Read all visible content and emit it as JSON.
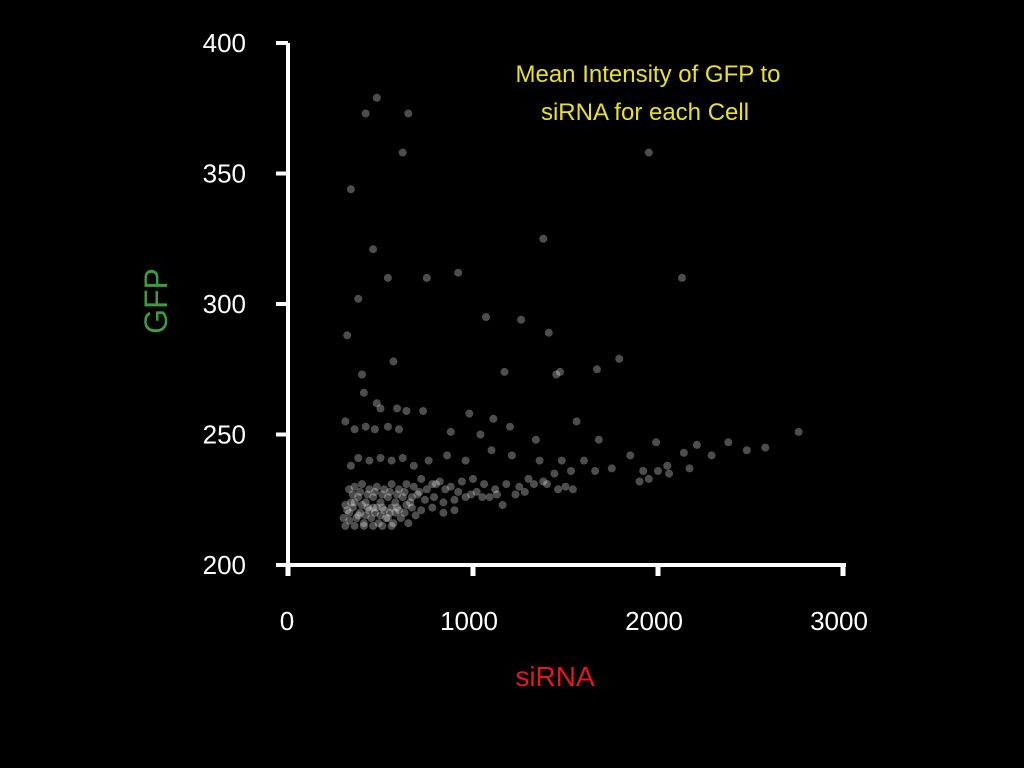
{
  "chart_data": {
    "type": "scatter",
    "title": "Mean Intensity of GFP to siRNA for each Cell",
    "title_lines": [
      "Mean Intensity of GFP to",
      "siRNA for each Cell"
    ],
    "xlabel": "siRNA",
    "ylabel": "GFP",
    "xlim": [
      0,
      3000
    ],
    "ylim": [
      200,
      400
    ],
    "x_ticks": [
      0,
      1000,
      2000,
      3000
    ],
    "x_tick_labels": [
      "0",
      "1000",
      "2000",
      "3000"
    ],
    "y_ticks": [
      200,
      250,
      300,
      350,
      400
    ],
    "y_tick_labels": [
      "200",
      "250",
      "300",
      "350",
      "400"
    ],
    "grid": false,
    "legend": "none",
    "colors": {
      "background": "#000000",
      "axes": "#ffffff",
      "tick_labels": "#ffffff",
      "title": "#e8e02a",
      "xlabel": "#e0191e",
      "ylabel": "#3f9a40",
      "points": "#ffffff"
    },
    "points": [
      [
        480,
        379
      ],
      [
        420,
        373
      ],
      [
        650,
        373
      ],
      [
        620,
        358
      ],
      [
        1950,
        358
      ],
      [
        340,
        344
      ],
      [
        1380,
        325
      ],
      [
        460,
        321
      ],
      [
        540,
        310
      ],
      [
        750,
        310
      ],
      [
        920,
        312
      ],
      [
        2130,
        310
      ],
      [
        380,
        302
      ],
      [
        1070,
        295
      ],
      [
        1260,
        294
      ],
      [
        1410,
        289
      ],
      [
        320,
        288
      ],
      [
        570,
        278
      ],
      [
        1790,
        279
      ],
      [
        1670,
        275
      ],
      [
        1170,
        274
      ],
      [
        1450,
        273
      ],
      [
        1470,
        274
      ],
      [
        400,
        273
      ],
      [
        410,
        266
      ],
      [
        480,
        262
      ],
      [
        500,
        260
      ],
      [
        590,
        260
      ],
      [
        640,
        259
      ],
      [
        730,
        259
      ],
      [
        980,
        258
      ],
      [
        1110,
        256
      ],
      [
        1560,
        255
      ],
      [
        310,
        255
      ],
      [
        360,
        252
      ],
      [
        420,
        253
      ],
      [
        470,
        252
      ],
      [
        540,
        253
      ],
      [
        600,
        252
      ],
      [
        880,
        251
      ],
      [
        1040,
        250
      ],
      [
        1200,
        253
      ],
      [
        1340,
        248
      ],
      [
        1680,
        248
      ],
      [
        1990,
        247
      ],
      [
        2210,
        246
      ],
      [
        2380,
        247
      ],
      [
        2580,
        245
      ],
      [
        2760,
        251
      ],
      [
        2480,
        244
      ],
      [
        2140,
        243
      ],
      [
        2290,
        242
      ],
      [
        1850,
        242
      ],
      [
        1600,
        240
      ],
      [
        1480,
        240
      ],
      [
        1360,
        240
      ],
      [
        1210,
        242
      ],
      [
        1100,
        244
      ],
      [
        960,
        240
      ],
      [
        860,
        242
      ],
      [
        760,
        240
      ],
      [
        680,
        238
      ],
      [
        620,
        241
      ],
      [
        560,
        240
      ],
      [
        500,
        241
      ],
      [
        440,
        240
      ],
      [
        380,
        241
      ],
      [
        340,
        238
      ],
      [
        1750,
        237
      ],
      [
        1920,
        236
      ],
      [
        2050,
        238
      ],
      [
        2170,
        237
      ],
      [
        2060,
        235
      ],
      [
        1900,
        232
      ],
      [
        1950,
        233
      ],
      [
        2000,
        236
      ],
      [
        1660,
        236
      ],
      [
        1530,
        236
      ],
      [
        1440,
        235
      ],
      [
        1380,
        232
      ],
      [
        1300,
        233
      ],
      [
        1250,
        230
      ],
      [
        1180,
        231
      ],
      [
        1120,
        229
      ],
      [
        1060,
        231
      ],
      [
        1000,
        233
      ],
      [
        940,
        232
      ],
      [
        880,
        230
      ],
      [
        820,
        232
      ],
      [
        780,
        231
      ],
      [
        720,
        233
      ],
      [
        680,
        230
      ],
      [
        640,
        231
      ],
      [
        600,
        229
      ],
      [
        560,
        231
      ],
      [
        520,
        229
      ],
      [
        480,
        230
      ],
      [
        440,
        229
      ],
      [
        400,
        231
      ],
      [
        360,
        230
      ],
      [
        330,
        229
      ],
      [
        1540,
        229
      ],
      [
        1460,
        229
      ],
      [
        1330,
        231
      ],
      [
        1230,
        227
      ],
      [
        1160,
        223
      ],
      [
        1090,
        226
      ],
      [
        1020,
        228
      ],
      [
        960,
        226
      ],
      [
        900,
        225
      ],
      [
        840,
        224
      ],
      [
        790,
        226
      ],
      [
        740,
        225
      ],
      [
        700,
        227
      ],
      [
        660,
        224
      ],
      [
        620,
        226
      ],
      [
        580,
        224
      ],
      [
        540,
        226
      ],
      [
        500,
        224
      ],
      [
        460,
        226
      ],
      [
        420,
        224
      ],
      [
        380,
        226
      ],
      [
        340,
        224
      ],
      [
        310,
        223
      ],
      [
        320,
        221
      ],
      [
        350,
        222
      ],
      [
        390,
        220
      ],
      [
        430,
        222
      ],
      [
        470,
        220
      ],
      [
        510,
        222
      ],
      [
        550,
        220
      ],
      [
        590,
        222
      ],
      [
        630,
        220
      ],
      [
        670,
        222
      ],
      [
        720,
        221
      ],
      [
        780,
        222
      ],
      [
        840,
        220
      ],
      [
        900,
        221
      ],
      [
        300,
        218
      ],
      [
        330,
        217
      ],
      [
        370,
        218
      ],
      [
        410,
        216
      ],
      [
        450,
        218
      ],
      [
        490,
        216
      ],
      [
        530,
        218
      ],
      [
        570,
        216
      ],
      [
        610,
        218
      ],
      [
        650,
        216
      ],
      [
        690,
        219
      ],
      [
        310,
        215
      ],
      [
        360,
        215
      ],
      [
        410,
        215
      ],
      [
        460,
        215
      ],
      [
        510,
        215
      ],
      [
        560,
        215
      ],
      [
        330,
        220
      ],
      [
        360,
        224
      ],
      [
        400,
        223
      ],
      [
        440,
        221
      ],
      [
        480,
        222
      ],
      [
        520,
        221
      ],
      [
        560,
        222
      ],
      [
        600,
        221
      ],
      [
        640,
        223
      ],
      [
        380,
        219
      ],
      [
        420,
        219
      ],
      [
        460,
        222
      ],
      [
        500,
        219
      ],
      [
        540,
        218
      ],
      [
        580,
        220
      ],
      [
        350,
        227
      ],
      [
        390,
        228
      ],
      [
        430,
        227
      ],
      [
        470,
        228
      ],
      [
        510,
        227
      ],
      [
        550,
        228
      ],
      [
        590,
        227
      ],
      [
        630,
        228
      ],
      [
        670,
        226
      ],
      [
        710,
        228
      ],
      [
        750,
        229
      ],
      [
        800,
        231
      ],
      [
        850,
        229
      ],
      [
        920,
        228
      ],
      [
        990,
        227
      ],
      [
        1050,
        226
      ],
      [
        1130,
        227
      ],
      [
        1280,
        228
      ],
      [
        1400,
        231
      ],
      [
        1500,
        230
      ]
    ]
  }
}
